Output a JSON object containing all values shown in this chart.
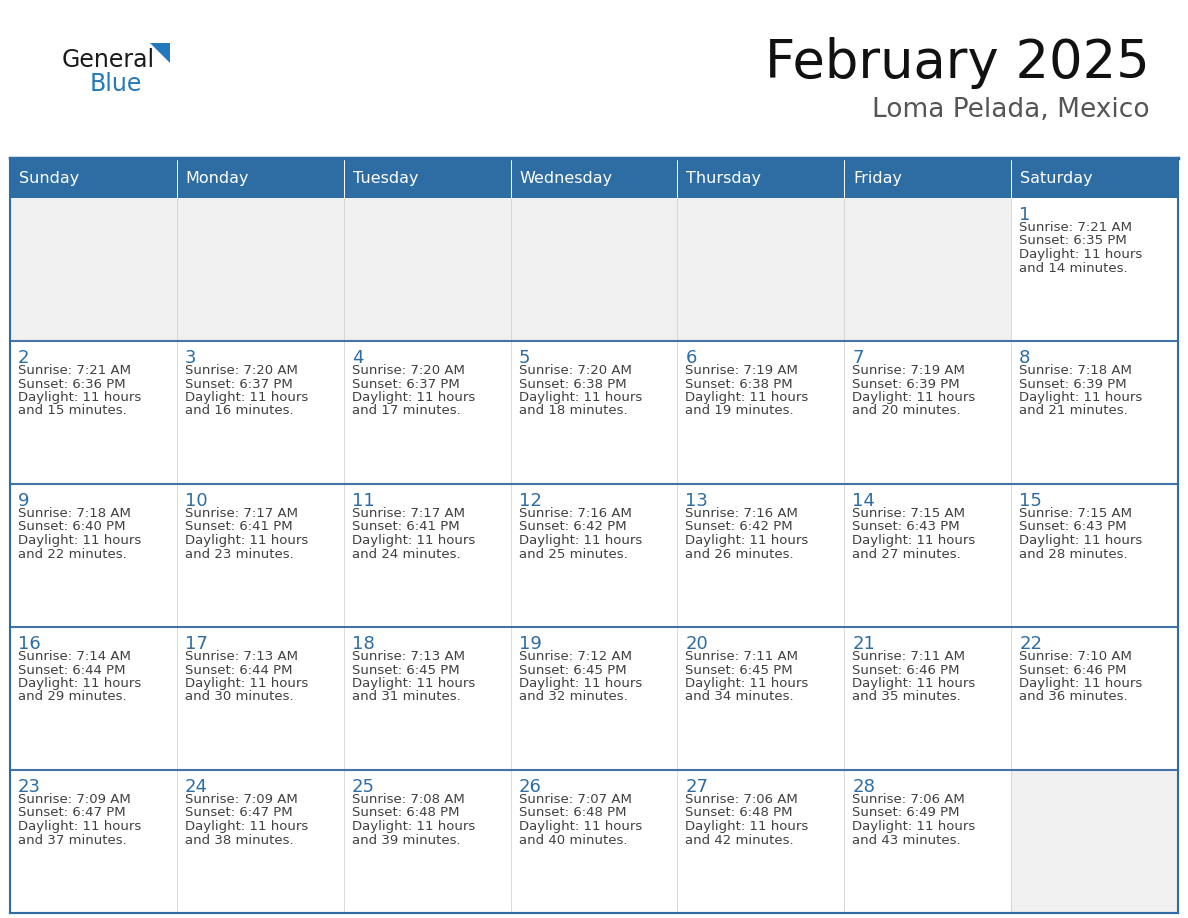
{
  "title": "February 2025",
  "subtitle": "Loma Pelada, Mexico",
  "header_bg_color": "#2E6DA4",
  "header_text_color": "#FFFFFF",
  "cell_bg_color": "#FFFFFF",
  "empty_row_bg_color": "#F0F0F0",
  "day_number_color": "#2E6DA4",
  "info_text_color": "#404040",
  "border_color": "#2E6DA4",
  "separator_color": "#4472AA",
  "days_of_week": [
    "Sunday",
    "Monday",
    "Tuesday",
    "Wednesday",
    "Thursday",
    "Friday",
    "Saturday"
  ],
  "calendar": [
    [
      null,
      null,
      null,
      null,
      null,
      null,
      1
    ],
    [
      2,
      3,
      4,
      5,
      6,
      7,
      8
    ],
    [
      9,
      10,
      11,
      12,
      13,
      14,
      15
    ],
    [
      16,
      17,
      18,
      19,
      20,
      21,
      22
    ],
    [
      23,
      24,
      25,
      26,
      27,
      28,
      null
    ]
  ],
  "sunrise": {
    "1": "7:21 AM",
    "2": "7:21 AM",
    "3": "7:20 AM",
    "4": "7:20 AM",
    "5": "7:20 AM",
    "6": "7:19 AM",
    "7": "7:19 AM",
    "8": "7:18 AM",
    "9": "7:18 AM",
    "10": "7:17 AM",
    "11": "7:17 AM",
    "12": "7:16 AM",
    "13": "7:16 AM",
    "14": "7:15 AM",
    "15": "7:15 AM",
    "16": "7:14 AM",
    "17": "7:13 AM",
    "18": "7:13 AM",
    "19": "7:12 AM",
    "20": "7:11 AM",
    "21": "7:11 AM",
    "22": "7:10 AM",
    "23": "7:09 AM",
    "24": "7:09 AM",
    "25": "7:08 AM",
    "26": "7:07 AM",
    "27": "7:06 AM",
    "28": "7:06 AM"
  },
  "sunset": {
    "1": "6:35 PM",
    "2": "6:36 PM",
    "3": "6:37 PM",
    "4": "6:37 PM",
    "5": "6:38 PM",
    "6": "6:38 PM",
    "7": "6:39 PM",
    "8": "6:39 PM",
    "9": "6:40 PM",
    "10": "6:41 PM",
    "11": "6:41 PM",
    "12": "6:42 PM",
    "13": "6:42 PM",
    "14": "6:43 PM",
    "15": "6:43 PM",
    "16": "6:44 PM",
    "17": "6:44 PM",
    "18": "6:45 PM",
    "19": "6:45 PM",
    "20": "6:45 PM",
    "21": "6:46 PM",
    "22": "6:46 PM",
    "23": "6:47 PM",
    "24": "6:47 PM",
    "25": "6:48 PM",
    "26": "6:48 PM",
    "27": "6:48 PM",
    "28": "6:49 PM"
  },
  "daylight": {
    "1": [
      "11 hours",
      "and 14 minutes."
    ],
    "2": [
      "11 hours",
      "and 15 minutes."
    ],
    "3": [
      "11 hours",
      "and 16 minutes."
    ],
    "4": [
      "11 hours",
      "and 17 minutes."
    ],
    "5": [
      "11 hours",
      "and 18 minutes."
    ],
    "6": [
      "11 hours",
      "and 19 minutes."
    ],
    "7": [
      "11 hours",
      "and 20 minutes."
    ],
    "8": [
      "11 hours",
      "and 21 minutes."
    ],
    "9": [
      "11 hours",
      "and 22 minutes."
    ],
    "10": [
      "11 hours",
      "and 23 minutes."
    ],
    "11": [
      "11 hours",
      "and 24 minutes."
    ],
    "12": [
      "11 hours",
      "and 25 minutes."
    ],
    "13": [
      "11 hours",
      "and 26 minutes."
    ],
    "14": [
      "11 hours",
      "and 27 minutes."
    ],
    "15": [
      "11 hours",
      "and 28 minutes."
    ],
    "16": [
      "11 hours",
      "and 29 minutes."
    ],
    "17": [
      "11 hours",
      "and 30 minutes."
    ],
    "18": [
      "11 hours",
      "and 31 minutes."
    ],
    "19": [
      "11 hours",
      "and 32 minutes."
    ],
    "20": [
      "11 hours",
      "and 34 minutes."
    ],
    "21": [
      "11 hours",
      "and 35 minutes."
    ],
    "22": [
      "11 hours",
      "and 36 minutes."
    ],
    "23": [
      "11 hours",
      "and 37 minutes."
    ],
    "24": [
      "11 hours",
      "and 38 minutes."
    ],
    "25": [
      "11 hours",
      "and 39 minutes."
    ],
    "26": [
      "11 hours",
      "and 40 minutes."
    ],
    "27": [
      "11 hours",
      "and 42 minutes."
    ],
    "28": [
      "11 hours",
      "and 43 minutes."
    ]
  },
  "logo_text1": "General",
  "logo_text2": "Blue",
  "logo_color1": "#1a1a1a",
  "logo_color2": "#2479BD",
  "logo_triangle_color": "#2479BD",
  "fig_width": 11.88,
  "fig_height": 9.18,
  "fig_dpi": 100
}
